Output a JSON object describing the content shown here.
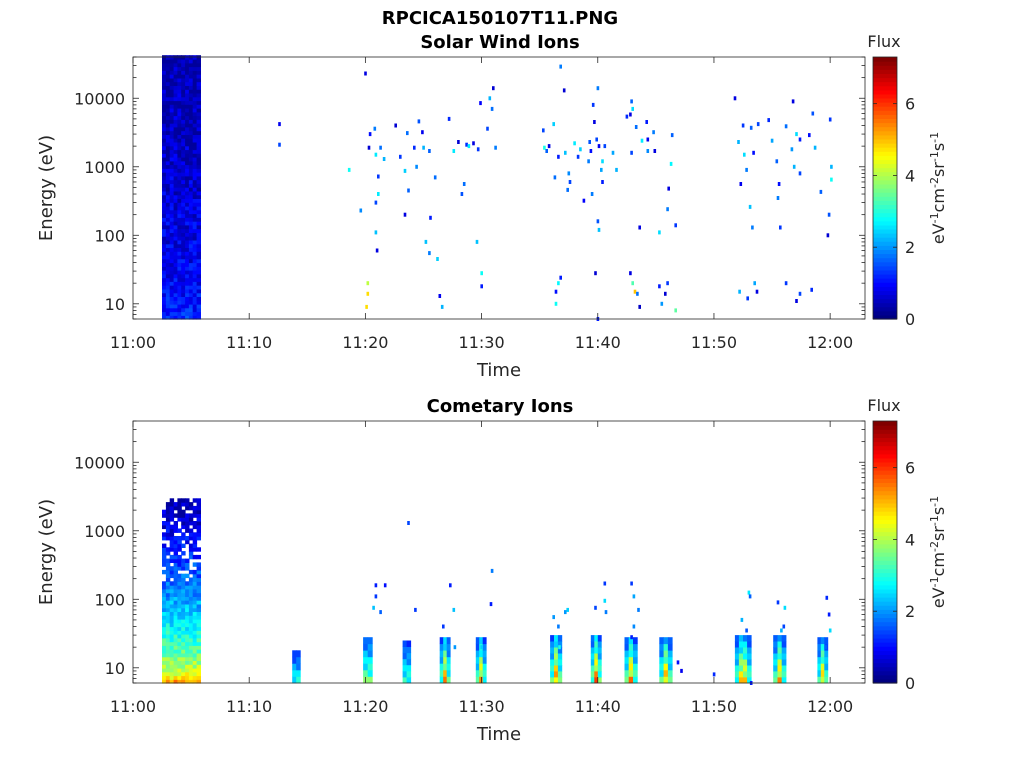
{
  "figure": {
    "title": "RPCICA150107T11.PNG"
  },
  "chart_data": [
    {
      "type": "heatmap",
      "title": "Solar Wind Ions",
      "xlabel": "Time",
      "ylabel": "Energy (eV)",
      "x_ticks": [
        "11:00",
        "11:10",
        "11:20",
        "11:30",
        "11:40",
        "11:50",
        "12:00"
      ],
      "x_range": [
        "11:00",
        "12:03"
      ],
      "y_scale": "log",
      "y_ticks": [
        10,
        100,
        1000,
        10000
      ],
      "y_tick_labels": [
        "10",
        "100",
        "1000",
        "10000"
      ],
      "y_range": [
        6,
        40000
      ],
      "colorbar": {
        "label": "Flux",
        "unit": "eV-1cm-2sr-1s-1",
        "ticks": [
          0,
          2,
          4,
          6
        ],
        "range": [
          0,
          7.3
        ],
        "colormap": "jet"
      },
      "blocks": [
        {
          "t0": 2.5,
          "t1": 5.7,
          "e0": 6,
          "e1": 40000,
          "flux_bottom": 1.2,
          "flux_top": 0.35
        }
      ],
      "points": [
        [
          12.6,
          4200,
          0.8
        ],
        [
          12.6,
          2100,
          1.4
        ],
        [
          18.6,
          900,
          2.8
        ],
        [
          20.0,
          23000,
          0.7
        ],
        [
          19.6,
          230,
          1.9
        ],
        [
          20.4,
          3000,
          1.0
        ],
        [
          20.8,
          3600,
          1.8
        ],
        [
          20.9,
          1500,
          2.6
        ],
        [
          20.3,
          1900,
          0.6
        ],
        [
          21.3,
          1900,
          1.7
        ],
        [
          21.6,
          1300,
          2.2
        ],
        [
          21.1,
          720,
          1.3
        ],
        [
          21.1,
          400,
          2.6
        ],
        [
          20.9,
          300,
          1.4
        ],
        [
          20.9,
          110,
          2.3
        ],
        [
          21.0,
          60,
          0.7
        ],
        [
          20.2,
          20,
          4.1
        ],
        [
          20.2,
          14,
          4.8
        ],
        [
          20.1,
          9,
          4.8
        ],
        [
          22.6,
          4000,
          0.6
        ],
        [
          23.0,
          1400,
          1.3
        ],
        [
          23.4,
          870,
          2.4
        ],
        [
          23.4,
          200,
          0.7
        ],
        [
          23.7,
          450,
          1.6
        ],
        [
          23.6,
          3100,
          1.7
        ],
        [
          24.2,
          1900,
          1.2
        ],
        [
          24.4,
          1000,
          1.9
        ],
        [
          24.6,
          4600,
          1.5
        ],
        [
          24.9,
          3200,
          0.8
        ],
        [
          25.0,
          1900,
          2.2
        ],
        [
          25.5,
          1700,
          1.6
        ],
        [
          25.6,
          180,
          1.1
        ],
        [
          26.0,
          700,
          1.7
        ],
        [
          25.2,
          80,
          2.3
        ],
        [
          25.5,
          55,
          1.8
        ],
        [
          26.2,
          45,
          2.4
        ],
        [
          26.4,
          13,
          0.8
        ],
        [
          26.6,
          9,
          2.2
        ],
        [
          27.2,
          5000,
          1.2
        ],
        [
          27.6,
          1700,
          2.6
        ],
        [
          28.0,
          2300,
          0.6
        ],
        [
          28.3,
          400,
          1.5
        ],
        [
          28.5,
          560,
          1.7
        ],
        [
          28.7,
          2100,
          1.2
        ],
        [
          28.9,
          2000,
          2.6
        ],
        [
          29.3,
          2200,
          0.7
        ],
        [
          29.7,
          1800,
          1.3
        ],
        [
          29.6,
          80,
          2.3
        ],
        [
          29.9,
          8500,
          0.9
        ],
        [
          30.5,
          3600,
          1.4
        ],
        [
          30.9,
          7000,
          1.7
        ],
        [
          31.0,
          14000,
          0.6
        ],
        [
          30.7,
          10000,
          2.2
        ],
        [
          31.2,
          1900,
          1.8
        ],
        [
          30.0,
          28,
          2.8
        ],
        [
          30.0,
          18,
          1.1
        ],
        [
          35.3,
          3400,
          1.4
        ],
        [
          35.4,
          1900,
          2.9
        ],
        [
          35.6,
          1700,
          1.6
        ],
        [
          35.8,
          2000,
          0.7
        ],
        [
          36.2,
          4200,
          2.4
        ],
        [
          36.3,
          700,
          1.7
        ],
        [
          36.6,
          1400,
          1.1
        ],
        [
          36.8,
          29000,
          1.8
        ],
        [
          36.4,
          10,
          2.8
        ],
        [
          36.4,
          15,
          1.0
        ],
        [
          36.6,
          20,
          2.7
        ],
        [
          36.8,
          24,
          1.1
        ],
        [
          37.1,
          13000,
          0.6
        ],
        [
          37.2,
          1600,
          2.3
        ],
        [
          37.5,
          800,
          1.9
        ],
        [
          37.6,
          600,
          1.4
        ],
        [
          37.4,
          460,
          1.7
        ],
        [
          38.0,
          2200,
          2.6
        ],
        [
          38.3,
          1400,
          1.3
        ],
        [
          38.5,
          1800,
          2.4
        ],
        [
          38.8,
          320,
          0.9
        ],
        [
          39.2,
          1200,
          1.8
        ],
        [
          39.3,
          2300,
          1.5
        ],
        [
          39.4,
          1700,
          1.0
        ],
        [
          39.5,
          400,
          1.8
        ],
        [
          39.6,
          8000,
          1.3
        ],
        [
          39.7,
          4500,
          0.7
        ],
        [
          39.9,
          2500,
          1.4
        ],
        [
          40.0,
          14000,
          1.8
        ],
        [
          40.1,
          2000,
          0.8
        ],
        [
          40.0,
          160,
          1.5
        ],
        [
          40.1,
          120,
          2.3
        ],
        [
          40.0,
          6,
          1.1
        ],
        [
          39.8,
          28,
          0.6
        ],
        [
          40.3,
          900,
          2.1
        ],
        [
          40.4,
          600,
          1.1
        ],
        [
          40.4,
          1200,
          2.5
        ],
        [
          40.6,
          2000,
          1.4
        ],
        [
          41.3,
          1600,
          2.1
        ],
        [
          41.6,
          900,
          2.2
        ],
        [
          42.5,
          5400,
          1.2
        ],
        [
          42.8,
          5800,
          0.7
        ],
        [
          42.9,
          9000,
          1.6
        ],
        [
          43.0,
          7000,
          2.5
        ],
        [
          42.9,
          1600,
          1.4
        ],
        [
          43.3,
          3800,
          1.7
        ],
        [
          43.0,
          20,
          3.3
        ],
        [
          43.2,
          15,
          5.0
        ],
        [
          43.6,
          9,
          0.5
        ],
        [
          43.4,
          14,
          1.7
        ],
        [
          43.6,
          130,
          0.7
        ],
        [
          42.8,
          28,
          0.7
        ],
        [
          43.8,
          2400,
          2.6
        ],
        [
          44.2,
          4500,
          1.1
        ],
        [
          44.3,
          1700,
          1.9
        ],
        [
          44.3,
          2500,
          0.8
        ],
        [
          44.8,
          3200,
          1.8
        ],
        [
          44.9,
          1700,
          0.7
        ],
        [
          45.3,
          18,
          1.1
        ],
        [
          45.5,
          10,
          2.0
        ],
        [
          45.8,
          14,
          0.6
        ],
        [
          46.0,
          20,
          1.3
        ],
        [
          46.3,
          1100,
          2.7
        ],
        [
          46.4,
          2900,
          1.6
        ],
        [
          46.7,
          140,
          1.3
        ],
        [
          46.1,
          480,
          0.7
        ],
        [
          46.0,
          240,
          1.8
        ],
        [
          46.7,
          8,
          3.4
        ],
        [
          45.3,
          110,
          2.5
        ],
        [
          51.8,
          10000,
          0.7
        ],
        [
          52.1,
          2300,
          2.2
        ],
        [
          52.3,
          560,
          0.8
        ],
        [
          52.5,
          4000,
          1.3
        ],
        [
          52.6,
          1500,
          2.5
        ],
        [
          52.8,
          900,
          1.8
        ],
        [
          53.2,
          3700,
          1.6
        ],
        [
          53.4,
          1600,
          1.0
        ],
        [
          53.8,
          4200,
          1.4
        ],
        [
          53.1,
          260,
          2.3
        ],
        [
          53.3,
          130,
          1.8
        ],
        [
          52.2,
          15,
          2.2
        ],
        [
          52.9,
          12,
          1.3
        ],
        [
          53.5,
          20,
          2.1
        ],
        [
          53.7,
          15,
          0.7
        ],
        [
          54.7,
          4800,
          1.2
        ],
        [
          55.0,
          2400,
          2.1
        ],
        [
          55.4,
          1200,
          1.6
        ],
        [
          55.6,
          560,
          1.0
        ],
        [
          55.5,
          350,
          1.8
        ],
        [
          55.7,
          130,
          1.3
        ],
        [
          56.2,
          3900,
          1.7
        ],
        [
          56.8,
          9000,
          0.7
        ],
        [
          57.1,
          3000,
          2.5
        ],
        [
          57.4,
          2500,
          1.1
        ],
        [
          56.9,
          1000,
          2.2
        ],
        [
          57.4,
          800,
          1.4
        ],
        [
          56.7,
          1800,
          2.0
        ],
        [
          56.2,
          20,
          1.3
        ],
        [
          57.1,
          11,
          0.7
        ],
        [
          57.4,
          14,
          1.4
        ],
        [
          58.2,
          2900,
          1.0
        ],
        [
          58.5,
          6000,
          1.5
        ],
        [
          58.7,
          1900,
          2.2
        ],
        [
          59.2,
          430,
          1.6
        ],
        [
          59.8,
          100,
          0.6
        ],
        [
          59.9,
          200,
          1.5
        ],
        [
          60.0,
          4900,
          1.3
        ],
        [
          60.1,
          1000,
          2.2
        ],
        [
          60.1,
          650,
          2.8
        ],
        [
          58.4,
          16,
          1.2
        ]
      ]
    },
    {
      "type": "heatmap",
      "title": "Cometary Ions",
      "xlabel": "Time",
      "ylabel": "Energy (eV)",
      "x_ticks": [
        "11:00",
        "11:10",
        "11:20",
        "11:30",
        "11:40",
        "11:50",
        "12:00"
      ],
      "x_range": [
        "11:00",
        "12:03"
      ],
      "y_scale": "log",
      "y_ticks": [
        10,
        100,
        1000,
        10000
      ],
      "y_tick_labels": [
        "10",
        "100",
        "1000",
        "10000"
      ],
      "y_range": [
        6,
        40000
      ],
      "colorbar": {
        "label": "Flux",
        "unit": "eV-1cm-2sr-1s-1",
        "ticks": [
          0,
          2,
          4,
          6
        ],
        "range": [
          0,
          7.3
        ],
        "colormap": "jet"
      },
      "blocks": [
        {
          "t0": 2.5,
          "t1": 5.7,
          "e0": 6,
          "e1": 3000,
          "flux_bottom": 5.3,
          "flux_top": 0.3
        }
      ],
      "bursts": [
        {
          "t0": 13.7,
          "t1": 14.4,
          "e0": 6,
          "e1": 18,
          "flux": 4.2
        },
        {
          "t0": 19.8,
          "t1": 20.6,
          "e0": 6,
          "e1": 28,
          "flux": 5.2
        },
        {
          "t0": 23.2,
          "t1": 23.9,
          "e0": 6,
          "e1": 25,
          "flux": 4.5
        },
        {
          "t0": 26.4,
          "t1": 27.3,
          "e0": 6,
          "e1": 28,
          "flux": 5.6
        },
        {
          "t0": 29.5,
          "t1": 30.4,
          "e0": 6,
          "e1": 28,
          "flux": 5.4
        },
        {
          "t0": 35.9,
          "t1": 36.9,
          "e0": 6,
          "e1": 30,
          "flux": 5.8
        },
        {
          "t0": 39.4,
          "t1": 40.3,
          "e0": 6,
          "e1": 30,
          "flux": 6.0
        },
        {
          "t0": 42.3,
          "t1": 43.4,
          "e0": 6,
          "e1": 28,
          "flux": 5.7
        },
        {
          "t0": 45.3,
          "t1": 46.4,
          "e0": 6,
          "e1": 28,
          "flux": 5.6
        },
        {
          "t0": 51.8,
          "t1": 53.2,
          "e0": 6,
          "e1": 30,
          "flux": 5.9
        },
        {
          "t0": 55.1,
          "t1": 56.2,
          "e0": 6,
          "e1": 30,
          "flux": 5.5
        },
        {
          "t0": 58.9,
          "t1": 59.8,
          "e0": 6,
          "e1": 28,
          "flux": 5.3
        }
      ],
      "points": [
        [
          20.9,
          160,
          1.1
        ],
        [
          20.9,
          110,
          1.3
        ],
        [
          20.7,
          75,
          2.3
        ],
        [
          21.3,
          65,
          1.6
        ],
        [
          21.7,
          160,
          1.0
        ],
        [
          23.7,
          1300,
          1.4
        ],
        [
          24.3,
          70,
          1.3
        ],
        [
          26.7,
          40,
          1.3
        ],
        [
          27.3,
          160,
          1.1
        ],
        [
          27.6,
          70,
          2.3
        ],
        [
          30.9,
          260,
          1.8
        ],
        [
          30.8,
          85,
          1.1
        ],
        [
          30.0,
          20,
          2.4
        ],
        [
          27.7,
          20,
          2.0
        ],
        [
          36.2,
          55,
          2.0
        ],
        [
          36.6,
          40,
          1.8
        ],
        [
          37.2,
          65,
          2.0
        ],
        [
          37.4,
          70,
          2.4
        ],
        [
          36.7,
          20,
          2.9
        ],
        [
          39.8,
          75,
          1.4
        ],
        [
          40.6,
          170,
          1.3
        ],
        [
          40.6,
          95,
          2.5
        ],
        [
          40.7,
          65,
          1.8
        ],
        [
          42.9,
          170,
          1.3
        ],
        [
          43.1,
          110,
          2.1
        ],
        [
          43.5,
          70,
          1.8
        ],
        [
          43.1,
          40,
          1.9
        ],
        [
          42.9,
          28,
          1.1
        ],
        [
          46.9,
          12,
          1.0
        ],
        [
          47.2,
          9,
          0.8
        ],
        [
          52.4,
          50,
          2.2
        ],
        [
          52.8,
          35,
          1.5
        ],
        [
          53.0,
          125,
          2.6
        ],
        [
          53.1,
          110,
          1.6
        ],
        [
          53.2,
          6,
          1.1
        ],
        [
          55.5,
          90,
          1.3
        ],
        [
          56.1,
          75,
          2.5
        ],
        [
          55.8,
          35,
          2.2
        ],
        [
          56.0,
          40,
          1.4
        ],
        [
          59.7,
          105,
          1.2
        ],
        [
          59.9,
          60,
          1.1
        ],
        [
          60.0,
          35,
          2.5
        ],
        [
          59.6,
          20,
          1.6
        ],
        [
          50.0,
          8,
          1.2
        ]
      ]
    }
  ]
}
